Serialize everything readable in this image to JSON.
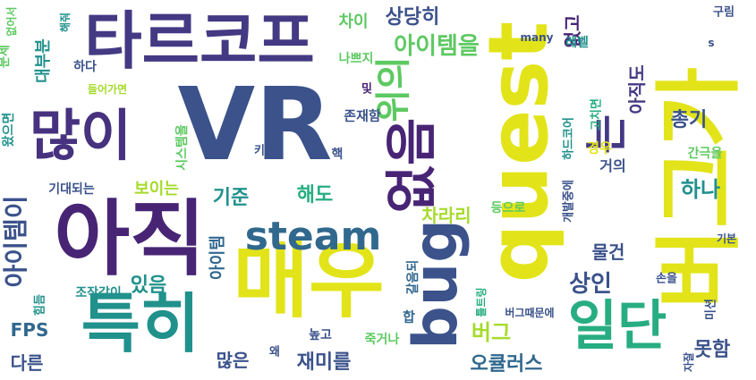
{
  "palette": {
    "yellow": "#e2e419",
    "lime": "#a6db2c",
    "green": "#5ec962",
    "teal": "#21918c",
    "cyan": "#27ad81",
    "blue": "#31688e",
    "indigo": "#3b528b",
    "navy": "#443983",
    "purple": "#482475",
    "violet": "#46327e"
  },
  "words": [
    {
      "text": "VR",
      "color": "indigo"
    },
    {
      "text": "타르코프",
      "color": "navy"
    },
    {
      "text": "quest",
      "color": "yellow"
    },
    {
      "text": "버그가",
      "color": "yellow"
    },
    {
      "text": "매우",
      "color": "yellow"
    },
    {
      "text": "아직",
      "color": "purple"
    },
    {
      "text": "많이",
      "color": "violet"
    },
    {
      "text": "bug",
      "color": "indigo"
    },
    {
      "text": "특히",
      "color": "teal"
    },
    {
      "text": "없음",
      "color": "purple"
    },
    {
      "text": "일단",
      "color": "cyan"
    },
    {
      "text": "steam",
      "color": "blue"
    },
    {
      "text": "위의",
      "color": "green"
    },
    {
      "text": "는",
      "color": "navy"
    },
    {
      "text": "아이템을",
      "color": "green"
    },
    {
      "text": "아이템이",
      "color": "indigo"
    },
    {
      "text": "상당히",
      "color": "indigo"
    },
    {
      "text": "없고",
      "color": "purple"
    },
    {
      "text": "아직도",
      "color": "navy"
    },
    {
      "text": "차이",
      "color": "green"
    },
    {
      "text": "구림",
      "color": "indigo"
    },
    {
      "text": "해줘",
      "color": "teal"
    },
    {
      "text": "없어서",
      "color": "green"
    },
    {
      "text": "문제",
      "color": "green"
    },
    {
      "text": "대부분",
      "color": "teal"
    },
    {
      "text": "하다",
      "color": "indigo"
    },
    {
      "text": "나쁘지",
      "color": "green"
    },
    {
      "text": "레벨",
      "color": "teal"
    },
    {
      "text": "many",
      "color": "indigo"
    },
    {
      "text": "s",
      "color": "indigo"
    },
    {
      "text": "총기",
      "color": "indigo"
    },
    {
      "text": "들어가면",
      "color": "lime"
    },
    {
      "text": "왔으면",
      "color": "teal"
    },
    {
      "text": "시스템을",
      "color": "green"
    },
    {
      "text": "존재함",
      "color": "indigo"
    },
    {
      "text": "및",
      "color": "purple"
    },
    {
      "text": "하드코어",
      "color": "teal"
    },
    {
      "text": "고치면",
      "color": "cyan"
    },
    {
      "text": "경우",
      "color": "yellow"
    },
    {
      "text": "키",
      "color": "indigo"
    },
    {
      "text": "핵",
      "color": "indigo"
    },
    {
      "text": "간극을",
      "color": "green"
    },
    {
      "text": "거의",
      "color": "indigo"
    },
    {
      "text": "기대되는",
      "color": "indigo"
    },
    {
      "text": "보이는",
      "color": "lime"
    },
    {
      "text": "기준",
      "color": "teal"
    },
    {
      "text": "해도",
      "color": "cyan"
    },
    {
      "text": "하나",
      "color": "teal"
    },
    {
      "text": "개발중에",
      "color": "indigo"
    },
    {
      "text": "차라리",
      "color": "lime"
    },
    {
      "text": "등으로",
      "color": "green"
    },
    {
      "text": "물건",
      "color": "indigo"
    },
    {
      "text": "기본",
      "color": "indigo"
    },
    {
      "text": "아이템",
      "color": "blue"
    },
    {
      "text": "갈음되",
      "color": "blue"
    },
    {
      "text": "있음",
      "color": "teal"
    },
    {
      "text": "상인",
      "color": "indigo"
    },
    {
      "text": "손을",
      "color": "indigo"
    },
    {
      "text": "힘듬",
      "color": "teal"
    },
    {
      "text": "조작감이",
      "color": "teal"
    },
    {
      "text": "FPS",
      "color": "blue"
    },
    {
      "text": "합",
      "color": "blue"
    },
    {
      "text": "틀트링",
      "color": "cyan"
    },
    {
      "text": "버그때문에",
      "color": "indigo"
    },
    {
      "text": "미션",
      "color": "indigo"
    },
    {
      "text": "버그",
      "color": "lime"
    },
    {
      "text": "높고",
      "color": "indigo"
    },
    {
      "text": "죽거나",
      "color": "green"
    },
    {
      "text": "다른",
      "color": "indigo"
    },
    {
      "text": "왜",
      "color": "indigo"
    },
    {
      "text": "많은",
      "color": "indigo"
    },
    {
      "text": "재미를",
      "color": "indigo"
    },
    {
      "text": "오큘러스",
      "color": "blue"
    },
    {
      "text": "못함",
      "color": "indigo"
    },
    {
      "text": "자잘",
      "color": "indigo"
    }
  ]
}
